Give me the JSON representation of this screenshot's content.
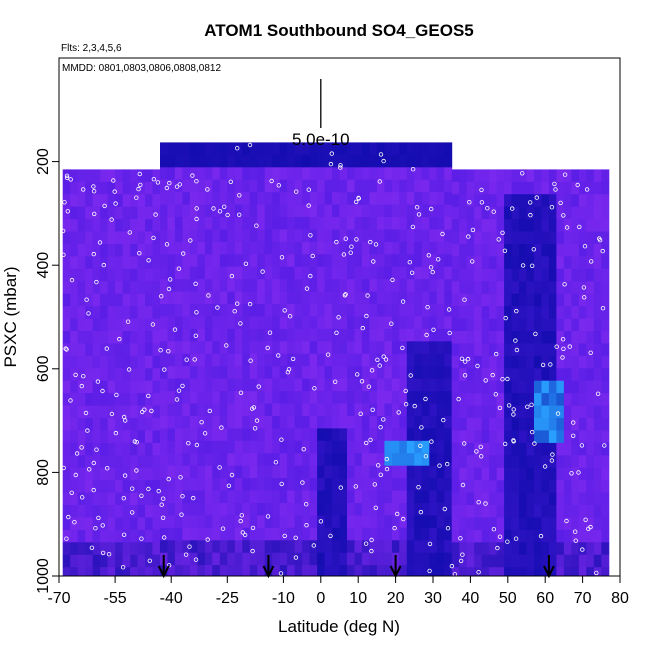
{
  "chart_data": {
    "type": "heatmap",
    "title": "ATOM1 Southbound SO4_GEOS5",
    "subtitle": "Flts: 2,3,4,5,6",
    "annotation": "MMDD: 0801,0803,0806,0808,0812",
    "xlabel": "Latitude (deg N)",
    "ylabel": "PSXC (mbar)",
    "xlim": [
      -70,
      80
    ],
    "ylim": [
      1000,
      0
    ],
    "x_ticks": [
      -70,
      -55,
      -40,
      -25,
      -10,
      0,
      10,
      20,
      30,
      40,
      50,
      60,
      70,
      80
    ],
    "x_tick_labels": [
      "-70",
      "-55",
      "-40",
      "-25",
      "-10",
      "0",
      "10",
      "20",
      "30",
      "40",
      "50",
      "60",
      "70",
      "80"
    ],
    "y_ticks": [
      200,
      400,
      600,
      800,
      1000
    ],
    "y_tick_labels": [
      "200",
      "400",
      "600",
      "800",
      "1000"
    ],
    "scale_bar_label": "5.0e-10",
    "scale_bar_x": 0,
    "flight_markers_lat": [
      -42,
      -14,
      20,
      61
    ],
    "colors": {
      "low": "#0a0aa8",
      "mid": "#5a1ee6",
      "high": "#7a28ee",
      "peak": "#2aa0ff",
      "points": "#ffffff"
    }
  }
}
